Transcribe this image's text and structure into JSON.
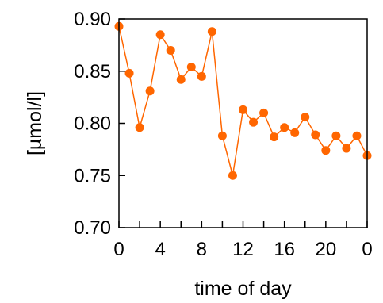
{
  "chart_data": {
    "type": "line",
    "title": "",
    "xlabel": "time of day",
    "ylabel": "[µmol/l]",
    "x_range": [
      0,
      24
    ],
    "ylim": [
      0.7,
      0.9
    ],
    "grid": false,
    "x_ticks": [
      0,
      2,
      4,
      6,
      8,
      10,
      12,
      14,
      16,
      18,
      20,
      22,
      24
    ],
    "x_tick_labels": [
      {
        "x": 0,
        "label": "0"
      },
      {
        "x": 4,
        "label": "4"
      },
      {
        "x": 8,
        "label": "8"
      },
      {
        "x": 12,
        "label": "12"
      },
      {
        "x": 16,
        "label": "16"
      },
      {
        "x": 20,
        "label": "20"
      },
      {
        "x": 24,
        "label": "0"
      }
    ],
    "y_ticks": [
      {
        "y": 0.7,
        "label": "0.70"
      },
      {
        "y": 0.75,
        "label": "0.75"
      },
      {
        "y": 0.8,
        "label": "0.80"
      },
      {
        "y": 0.85,
        "label": "0.85"
      },
      {
        "y": 0.9,
        "label": "0.90"
      }
    ],
    "series": [
      {
        "color": "#ff6600",
        "x": [
          0,
          1,
          2,
          3,
          4,
          5,
          6,
          7,
          8,
          9,
          10,
          11,
          12,
          13,
          14,
          15,
          16,
          17,
          18,
          19,
          20,
          21,
          22,
          23,
          24
        ],
        "y": [
          0.893,
          0.848,
          0.796,
          0.831,
          0.885,
          0.87,
          0.842,
          0.854,
          0.845,
          0.888,
          0.788,
          0.75,
          0.813,
          0.801,
          0.81,
          0.787,
          0.796,
          0.791,
          0.806,
          0.789,
          0.774,
          0.788,
          0.776,
          0.788,
          0.769
        ]
      }
    ]
  }
}
